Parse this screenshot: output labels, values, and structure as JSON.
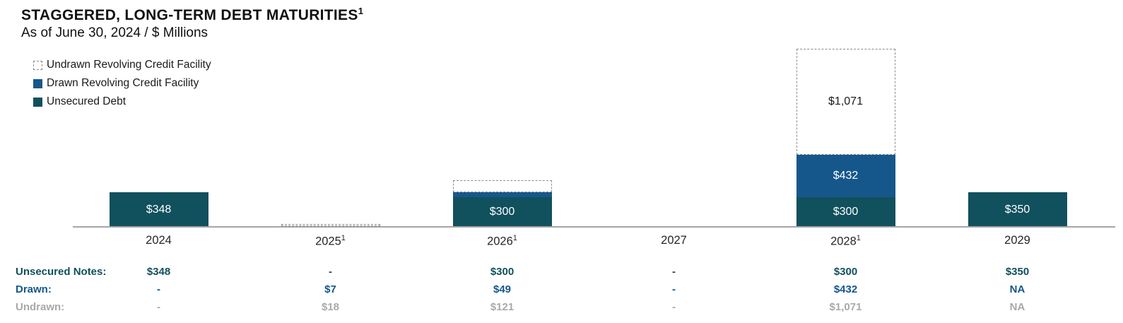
{
  "title": "STAGGERED, LONG-TERM DEBT MATURITIES",
  "title_sup": "1",
  "subtitle": "As of June 30, 2024 / $ Millions",
  "colors": {
    "unsecured": "#11505D",
    "drawn": "#16578B",
    "undrawn_fill": "#FFFFFF",
    "undrawn_border": "#8C8C8C",
    "axis_line": "#A6A6A6",
    "muted_text": "#A9A9A9",
    "bar_label_light": "#FFFFFF",
    "bar_label_dark": "#1A1A1A"
  },
  "legend": {
    "items": [
      {
        "label": "Undrawn Revolving Credit Facility",
        "swatch": "undrawn"
      },
      {
        "label": "Drawn Revolving Credit Facility",
        "swatch": "drawn"
      },
      {
        "label": "Unsecured Debt",
        "swatch": "unsecured"
      }
    ]
  },
  "chart_data": {
    "type": "bar",
    "stacked": true,
    "title": "STAGGERED, LONG-TERM DEBT MATURITIES",
    "subtitle": "As of June 30, 2024 / $ Millions",
    "unit": "$ Millions",
    "grid": false,
    "legend_position": "top-left",
    "ylim": [
      0,
      1900
    ],
    "categories": [
      {
        "label": "2024",
        "sup": ""
      },
      {
        "label": "2025",
        "sup": "1"
      },
      {
        "label": "2026",
        "sup": "1"
      },
      {
        "label": "2027",
        "sup": ""
      },
      {
        "label": "2028",
        "sup": "1"
      },
      {
        "label": "2029",
        "sup": ""
      }
    ],
    "series": [
      {
        "name": "Unsecured Debt",
        "key": "unsecured",
        "values": [
          348,
          0,
          300,
          0,
          300,
          350
        ],
        "labels": [
          "$348",
          "",
          "$300",
          "",
          "$300",
          "$350"
        ]
      },
      {
        "name": "Drawn Revolving Credit Facility",
        "key": "drawn",
        "values": [
          0,
          7,
          49,
          0,
          432,
          0
        ],
        "labels": [
          "",
          "",
          "",
          "",
          "$432",
          ""
        ]
      },
      {
        "name": "Undrawn Revolving Credit Facility",
        "key": "undrawn",
        "values": [
          0,
          18,
          121,
          0,
          1071,
          0
        ],
        "labels": [
          "",
          "",
          "",
          "",
          "$1,071",
          ""
        ]
      }
    ]
  },
  "table": {
    "rows": [
      {
        "label": "Unsecured Notes:",
        "key": "unsecured",
        "values": [
          "$348",
          "-",
          "$300",
          "-",
          "$300",
          "$350"
        ]
      },
      {
        "label": "Drawn:",
        "key": "drawn",
        "values": [
          "-",
          "$7",
          "$49",
          "-",
          "$432",
          "NA"
        ]
      },
      {
        "label": "Undrawn:",
        "key": "undrawn",
        "values": [
          "-",
          "$18",
          "$121",
          "-",
          "$1,071",
          "NA"
        ]
      }
    ]
  }
}
